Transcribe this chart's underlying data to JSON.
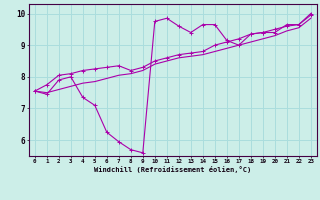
{
  "xlabel": "Windchill (Refroidissement éolien,°C)",
  "background_color": "#cceee8",
  "grid_color": "#aadddd",
  "line_color": "#aa00aa",
  "x_ticks": [
    0,
    1,
    2,
    3,
    4,
    5,
    6,
    7,
    8,
    9,
    10,
    11,
    12,
    13,
    14,
    15,
    16,
    17,
    18,
    19,
    20,
    21,
    22,
    23
  ],
  "ylim": [
    5.5,
    10.3
  ],
  "xlim": [
    -0.5,
    23.5
  ],
  "yticks": [
    6,
    7,
    8,
    9,
    10
  ],
  "line1_x": [
    0,
    1,
    2,
    3,
    4,
    5,
    6,
    7,
    8,
    9,
    10,
    11,
    12,
    13,
    14,
    15,
    16,
    17,
    18,
    19,
    20,
    21,
    22,
    23
  ],
  "line1_y": [
    7.55,
    7.45,
    7.9,
    8.0,
    7.35,
    7.1,
    6.25,
    5.95,
    5.7,
    5.6,
    9.75,
    9.85,
    9.6,
    9.4,
    9.65,
    9.65,
    9.15,
    9.0,
    9.35,
    9.4,
    9.4,
    9.65,
    9.65,
    10.0
  ],
  "line2_x": [
    0,
    1,
    2,
    3,
    4,
    5,
    6,
    7,
    8,
    9,
    10,
    11,
    12,
    13,
    14,
    15,
    16,
    17,
    18,
    19,
    20,
    21,
    22,
    23
  ],
  "line2_y": [
    7.55,
    7.75,
    8.05,
    8.1,
    8.2,
    8.25,
    8.3,
    8.35,
    8.2,
    8.3,
    8.5,
    8.6,
    8.7,
    8.75,
    8.8,
    9.0,
    9.1,
    9.2,
    9.35,
    9.4,
    9.5,
    9.6,
    9.65,
    9.95
  ],
  "line3_x": [
    0,
    1,
    2,
    3,
    4,
    5,
    6,
    7,
    8,
    9,
    10,
    11,
    12,
    13,
    14,
    15,
    16,
    17,
    18,
    19,
    20,
    21,
    22,
    23
  ],
  "line3_y": [
    7.55,
    7.5,
    7.6,
    7.7,
    7.8,
    7.85,
    7.95,
    8.05,
    8.1,
    8.2,
    8.4,
    8.5,
    8.6,
    8.65,
    8.7,
    8.8,
    8.9,
    9.0,
    9.1,
    9.2,
    9.3,
    9.45,
    9.55,
    9.85
  ]
}
